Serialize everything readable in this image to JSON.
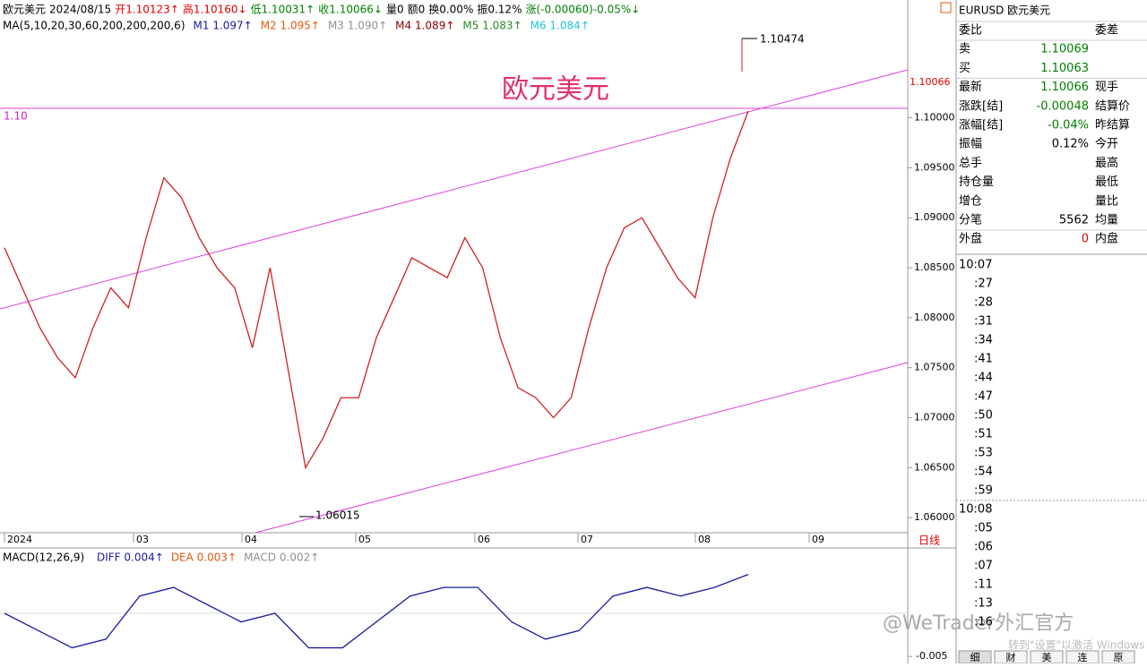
{
  "header": {
    "items": [
      {
        "text": "欧元美元",
        "color": "#000000"
      },
      {
        "text": "2024/08/15",
        "color": "#000000"
      },
      {
        "text": "开1.10123↑",
        "color": "#e00000"
      },
      {
        "text": "高1.10160↓",
        "color": "#e00000"
      },
      {
        "text": "低1.10031↑",
        "color": "#008000"
      },
      {
        "text": "收1.10066↓",
        "color": "#008000"
      },
      {
        "text": "量0",
        "color": "#000000"
      },
      {
        "text": "额0",
        "color": "#000000"
      },
      {
        "text": "换0.00%",
        "color": "#000000"
      },
      {
        "text": "振0.12%",
        "color": "#000000"
      },
      {
        "text": "涨(-0.00060)-0.05%↓",
        "color": "#008000"
      }
    ]
  },
  "ma_bar": {
    "items": [
      {
        "text": "MA(5,10,20,30,60,200,200,200,6)",
        "color": "#000000"
      },
      {
        "text": "M1 1.097↑",
        "color": "#1a1aa0"
      },
      {
        "text": "M2 1.095↑",
        "color": "#e05a10"
      },
      {
        "text": "M3 1.090↑",
        "color": "#909090"
      },
      {
        "text": "M4 1.089↑",
        "color": "#8b0000"
      },
      {
        "text": "M5 1.083↑",
        "color": "#2a8a2a"
      },
      {
        "text": "M6 1.084↑",
        "color": "#20c8d8"
      }
    ]
  },
  "chart_data": {
    "type": "line",
    "title": "欧元美元",
    "ylim": [
      1.0585,
      1.1082
    ],
    "yticks": [
      {
        "value": 1.06,
        "label": "1.06000"
      },
      {
        "value": 1.065,
        "label": "1.06500"
      },
      {
        "value": 1.07,
        "label": "1.07000"
      },
      {
        "value": 1.075,
        "label": "1.07500"
      },
      {
        "value": 1.08,
        "label": "1.08000"
      },
      {
        "value": 1.085,
        "label": "1.08500"
      },
      {
        "value": 1.09,
        "label": "1.09000"
      },
      {
        "value": 1.095,
        "label": "1.09500"
      },
      {
        "value": 1.1,
        "label": "1.10000"
      }
    ],
    "x_labels": [
      "2024",
      "03",
      "04",
      "05",
      "06",
      "07",
      "08",
      "09"
    ],
    "series": [
      {
        "name": "收",
        "color": "#d02020",
        "values": [
          1.087,
          1.083,
          1.079,
          1.076,
          1.074,
          1.079,
          1.083,
          1.081,
          1.088,
          1.094,
          1.092,
          1.088,
          1.085,
          1.083,
          1.077,
          1.085,
          1.075,
          1.065,
          1.068,
          1.072,
          1.072,
          1.078,
          1.082,
          1.086,
          1.085,
          1.084,
          1.088,
          1.085,
          1.078,
          1.073,
          1.072,
          1.07,
          1.072,
          1.079,
          1.085,
          1.089,
          1.09,
          1.087,
          1.084,
          1.082,
          1.09,
          1.096,
          1.10066
        ]
      }
    ],
    "annotations": {
      "high": "1.10474",
      "low": "1.06015",
      "level": "1.10",
      "last": "1.10066",
      "period": "日线"
    }
  },
  "macd": {
    "type": "line",
    "title": "MACD(12,26,9)",
    "items": [
      {
        "text": "DIFF 0.004↑",
        "color": "#1a1aa0"
      },
      {
        "text": "DEA 0.003↑",
        "color": "#e05a10"
      },
      {
        "text": "MACD 0.002↑",
        "color": "#909090"
      }
    ],
    "ylim": [
      -0.0055,
      0.0055
    ],
    "yticks": [
      {
        "value": -0.005,
        "label": "-0.005"
      }
    ],
    "series": [
      {
        "name": "DIFF",
        "color": "#1a1aa0",
        "values": [
          0,
          -0.002,
          -0.004,
          -0.003,
          0.002,
          0.003,
          0.001,
          -0.001,
          0,
          -0.004,
          -0.004,
          -0.001,
          0.002,
          0.003,
          0.003,
          -0.001,
          -0.003,
          -0.002,
          0.002,
          0.003,
          0.002,
          0.003,
          0.0045
        ]
      }
    ]
  },
  "quote_panel": {
    "title": "EURUSD 欧元美元",
    "rows": [
      [
        "委比",
        "",
        "委差"
      ],
      [
        "卖",
        "1.10069",
        ""
      ],
      [
        "买",
        "1.10063",
        ""
      ],
      [
        "最新",
        "1.10066",
        "现手"
      ],
      [
        "涨跌[结]",
        "-0.00048",
        "结算价"
      ],
      [
        "涨幅[结]",
        "-0.04%",
        "昨结算"
      ],
      [
        "振幅",
        "0.12%",
        "今开"
      ],
      [
        "总手",
        "",
        "最高"
      ],
      [
        "持仓量",
        "",
        "最低"
      ],
      [
        "增仓",
        "",
        "量比"
      ],
      [
        "分笔",
        "5562",
        "均量"
      ],
      [
        "外盘",
        "0",
        "内盘"
      ]
    ],
    "ticks": [
      "10:07",
      ":27",
      ":28",
      ":31",
      ":34",
      ":41",
      ":44",
      ":47",
      ":50",
      ":51",
      ":53",
      ":54",
      ":59",
      "10:08",
      ":05",
      ":06",
      ":07",
      ":11",
      ":13",
      ":16"
    ],
    "tabs": [
      "细",
      "财",
      "美",
      "连",
      "原"
    ]
  },
  "watermark": {
    "brand": "@WeTrader外汇官方",
    "activate": "转到\"设置\"以激活 Windows"
  }
}
